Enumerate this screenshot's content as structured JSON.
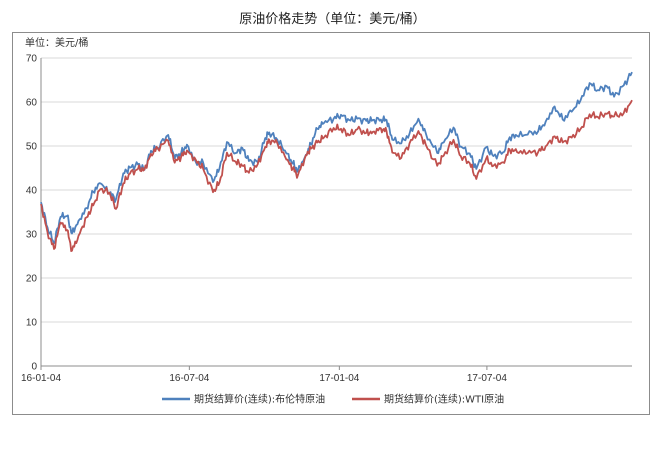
{
  "title": "原油价格走势（单位：美元/桶）",
  "chart_data": {
    "type": "line",
    "unit_label": "单位：美元/桶",
    "xlabel": "",
    "ylabel": "",
    "ylim": [
      0,
      70
    ],
    "yticks": [
      0,
      10,
      20,
      30,
      40,
      50,
      60,
      70
    ],
    "xlim": [
      "2016-01-04",
      "2017-12-29"
    ],
    "xticks": [
      {
        "date": "2016-01-04",
        "label": "16-01-04"
      },
      {
        "date": "2016-07-04",
        "label": "16-07-04"
      },
      {
        "date": "2017-01-04",
        "label": "17-01-04"
      },
      {
        "date": "2017-07-04",
        "label": "17-07-04"
      }
    ],
    "grid": "horizontal",
    "legend_position": "bottom",
    "series": [
      {
        "name": "期货结算价(连续):布伦特原油",
        "color": "#4f81bd",
        "points": [
          [
            "2016-01-04",
            37.2
          ],
          [
            "2016-01-12",
            31.5
          ],
          [
            "2016-01-20",
            27.9
          ],
          [
            "2016-01-28",
            33.9
          ],
          [
            "2016-02-05",
            34.1
          ],
          [
            "2016-02-11",
            30.1
          ],
          [
            "2016-02-19",
            33.0
          ],
          [
            "2016-02-29",
            35.9
          ],
          [
            "2016-03-08",
            39.6
          ],
          [
            "2016-03-17",
            41.5
          ],
          [
            "2016-03-28",
            39.3
          ],
          [
            "2016-04-05",
            37.9
          ],
          [
            "2016-04-14",
            43.8
          ],
          [
            "2016-04-22",
            45.1
          ],
          [
            "2016-05-02",
            45.8
          ],
          [
            "2016-05-10",
            44.6
          ],
          [
            "2016-05-18",
            48.9
          ],
          [
            "2016-05-26",
            49.6
          ],
          [
            "2016-06-08",
            52.5
          ],
          [
            "2016-06-16",
            47.2
          ],
          [
            "2016-06-24",
            48.4
          ],
          [
            "2016-07-01",
            50.3
          ],
          [
            "2016-07-12",
            46.3
          ],
          [
            "2016-07-21",
            46.2
          ],
          [
            "2016-08-02",
            41.8
          ],
          [
            "2016-08-10",
            44.9
          ],
          [
            "2016-08-19",
            50.9
          ],
          [
            "2016-08-30",
            48.4
          ],
          [
            "2016-09-07",
            49.6
          ],
          [
            "2016-09-15",
            46.6
          ],
          [
            "2016-09-26",
            46.3
          ],
          [
            "2016-10-05",
            51.8
          ],
          [
            "2016-10-10",
            53.1
          ],
          [
            "2016-10-20",
            51.4
          ],
          [
            "2016-10-31",
            48.3
          ],
          [
            "2016-11-08",
            46.0
          ],
          [
            "2016-11-14",
            44.4
          ],
          [
            "2016-11-24",
            48.0
          ],
          [
            "2016-11-30",
            50.5
          ],
          [
            "2016-12-08",
            53.9
          ],
          [
            "2016-12-16",
            55.2
          ],
          [
            "2016-12-28",
            56.2
          ],
          [
            "2017-01-06",
            57.1
          ],
          [
            "2017-01-16",
            55.9
          ],
          [
            "2017-01-26",
            56.2
          ],
          [
            "2017-02-06",
            55.7
          ],
          [
            "2017-02-14",
            55.9
          ],
          [
            "2017-02-24",
            56.0
          ],
          [
            "2017-03-03",
            55.9
          ],
          [
            "2017-03-10",
            51.4
          ],
          [
            "2017-03-21",
            50.6
          ],
          [
            "2017-03-31",
            52.8
          ],
          [
            "2017-04-11",
            56.2
          ],
          [
            "2017-04-20",
            52.9
          ],
          [
            "2017-05-04",
            48.4
          ],
          [
            "2017-05-12",
            50.8
          ],
          [
            "2017-05-24",
            54.2
          ],
          [
            "2017-06-02",
            49.9
          ],
          [
            "2017-06-13",
            48.3
          ],
          [
            "2017-06-21",
            44.8
          ],
          [
            "2017-07-03",
            49.7
          ],
          [
            "2017-07-12",
            47.7
          ],
          [
            "2017-07-24",
            48.6
          ],
          [
            "2017-08-01",
            52.0
          ],
          [
            "2017-08-10",
            52.3
          ],
          [
            "2017-08-23",
            52.6
          ],
          [
            "2017-09-05",
            53.4
          ],
          [
            "2017-09-14",
            55.5
          ],
          [
            "2017-09-25",
            59.0
          ],
          [
            "2017-10-05",
            56.0
          ],
          [
            "2017-10-16",
            57.8
          ],
          [
            "2017-10-27",
            60.4
          ],
          [
            "2017-11-07",
            64.3
          ],
          [
            "2017-11-17",
            62.7
          ],
          [
            "2017-11-28",
            63.6
          ],
          [
            "2017-12-07",
            61.2
          ],
          [
            "2017-12-19",
            63.8
          ],
          [
            "2017-12-29",
            66.8
          ]
        ]
      },
      {
        "name": "期货结算价(连续):WTI原油",
        "color": "#c0504d",
        "points": [
          [
            "2016-01-04",
            36.8
          ],
          [
            "2016-01-12",
            30.4
          ],
          [
            "2016-01-20",
            26.6
          ],
          [
            "2016-01-28",
            32.6
          ],
          [
            "2016-02-05",
            30.9
          ],
          [
            "2016-02-11",
            26.2
          ],
          [
            "2016-02-19",
            29.6
          ],
          [
            "2016-02-29",
            33.8
          ],
          [
            "2016-03-08",
            36.5
          ],
          [
            "2016-03-17",
            40.2
          ],
          [
            "2016-03-28",
            39.4
          ],
          [
            "2016-04-05",
            35.7
          ],
          [
            "2016-04-14",
            41.5
          ],
          [
            "2016-04-22",
            43.7
          ],
          [
            "2016-05-02",
            44.8
          ],
          [
            "2016-05-10",
            44.7
          ],
          [
            "2016-05-18",
            48.2
          ],
          [
            "2016-05-26",
            49.5
          ],
          [
            "2016-06-08",
            51.2
          ],
          [
            "2016-06-16",
            46.2
          ],
          [
            "2016-06-24",
            47.6
          ],
          [
            "2016-07-01",
            49.0
          ],
          [
            "2016-07-12",
            46.8
          ],
          [
            "2016-07-21",
            44.8
          ],
          [
            "2016-08-02",
            39.5
          ],
          [
            "2016-08-10",
            41.7
          ],
          [
            "2016-08-19",
            48.5
          ],
          [
            "2016-08-30",
            46.4
          ],
          [
            "2016-09-07",
            45.5
          ],
          [
            "2016-09-15",
            43.9
          ],
          [
            "2016-09-26",
            45.9
          ],
          [
            "2016-10-05",
            49.8
          ],
          [
            "2016-10-10",
            51.4
          ],
          [
            "2016-10-20",
            50.6
          ],
          [
            "2016-10-31",
            46.9
          ],
          [
            "2016-11-08",
            44.9
          ],
          [
            "2016-11-14",
            43.3
          ],
          [
            "2016-11-24",
            47.9
          ],
          [
            "2016-11-30",
            49.4
          ],
          [
            "2016-12-08",
            50.8
          ],
          [
            "2016-12-16",
            51.9
          ],
          [
            "2016-12-28",
            54.1
          ],
          [
            "2017-01-06",
            53.9
          ],
          [
            "2017-01-16",
            52.4
          ],
          [
            "2017-01-26",
            53.8
          ],
          [
            "2017-02-06",
            53.0
          ],
          [
            "2017-02-14",
            53.2
          ],
          [
            "2017-02-24",
            54.0
          ],
          [
            "2017-03-03",
            53.3
          ],
          [
            "2017-03-10",
            48.5
          ],
          [
            "2017-03-21",
            47.3
          ],
          [
            "2017-03-31",
            50.6
          ],
          [
            "2017-04-11",
            53.4
          ],
          [
            "2017-04-20",
            50.3
          ],
          [
            "2017-05-04",
            45.5
          ],
          [
            "2017-05-12",
            47.8
          ],
          [
            "2017-05-24",
            51.4
          ],
          [
            "2017-06-02",
            47.7
          ],
          [
            "2017-06-13",
            46.1
          ],
          [
            "2017-06-21",
            42.5
          ],
          [
            "2017-07-03",
            47.1
          ],
          [
            "2017-07-12",
            45.5
          ],
          [
            "2017-07-24",
            46.3
          ],
          [
            "2017-08-01",
            49.2
          ],
          [
            "2017-08-10",
            48.6
          ],
          [
            "2017-08-23",
            48.4
          ],
          [
            "2017-09-05",
            48.7
          ],
          [
            "2017-09-14",
            49.9
          ],
          [
            "2017-09-25",
            52.2
          ],
          [
            "2017-10-05",
            50.8
          ],
          [
            "2017-10-16",
            51.9
          ],
          [
            "2017-10-27",
            53.9
          ],
          [
            "2017-11-07",
            57.2
          ],
          [
            "2017-11-17",
            56.6
          ],
          [
            "2017-11-28",
            57.3
          ],
          [
            "2017-12-07",
            56.7
          ],
          [
            "2017-12-19",
            57.5
          ],
          [
            "2017-12-29",
            60.4
          ]
        ]
      }
    ]
  }
}
